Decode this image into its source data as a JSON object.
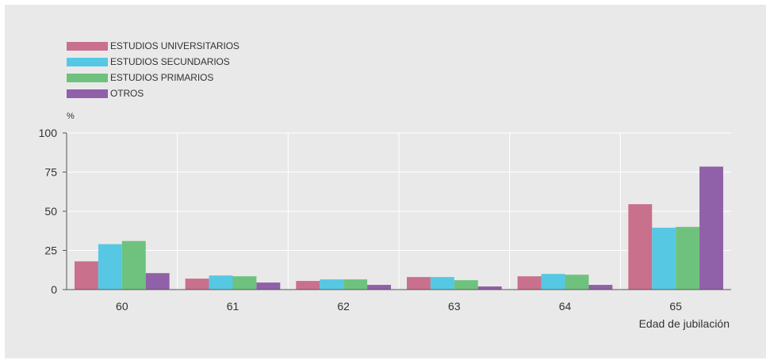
{
  "chart_data": {
    "type": "bar",
    "ylabel": "%",
    "xlabel": "Edad de jubilación",
    "categories": [
      "60",
      "61",
      "62",
      "63",
      "64",
      "65"
    ],
    "ylim": [
      0,
      100
    ],
    "yticks": [
      "0",
      "25",
      "50",
      "75",
      "100"
    ],
    "grid": true,
    "legend_position": "top-left",
    "series": [
      {
        "name": "ESTUDIOS UNIVERSITARIOS",
        "color": "#c9708c",
        "values": [
          18,
          7,
          5.5,
          8,
          8.5,
          54.5
        ]
      },
      {
        "name": "ESTUDIOS SECUNDARIOS",
        "color": "#56c8e3",
        "values": [
          29,
          9,
          6.5,
          8,
          10,
          39.5
        ]
      },
      {
        "name": "ESTUDIOS PRIMARIOS",
        "color": "#6ec27e",
        "values": [
          31,
          8.5,
          6.5,
          6,
          9.5,
          40
        ]
      },
      {
        "name": "OTROS",
        "color": "#9060a8",
        "values": [
          10.5,
          4.5,
          3,
          2,
          3,
          78.5
        ]
      }
    ]
  }
}
